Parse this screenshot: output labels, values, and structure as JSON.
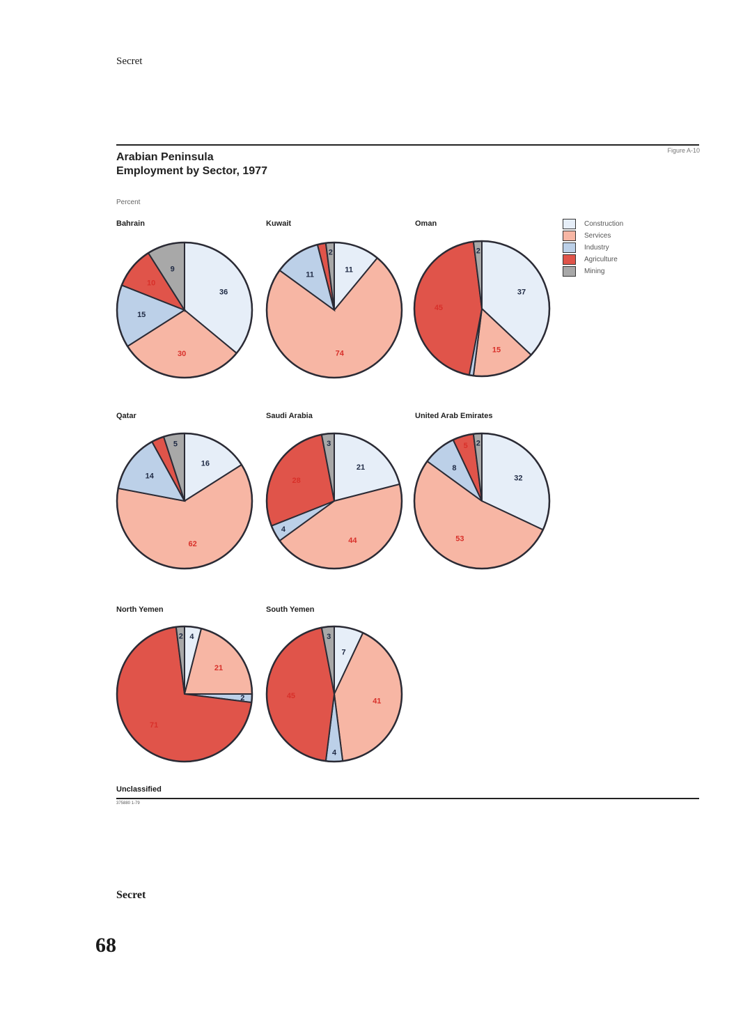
{
  "header": {
    "classification": "Secret"
  },
  "figure": {
    "title_line1": "Arabian Peninsula",
    "title_line2": "Employment by Sector, 1977",
    "label": "Figure A-10",
    "unit": "Percent"
  },
  "legend": {
    "placement": "top-right",
    "items": [
      {
        "key": "construction",
        "label": "Construction"
      },
      {
        "key": "services",
        "label": "Services"
      },
      {
        "key": "industry",
        "label": "Industry"
      },
      {
        "key": "agriculture",
        "label": "Agriculture"
      },
      {
        "key": "mining",
        "label": "Mining"
      }
    ]
  },
  "colors": {
    "construction": "#e6eef8",
    "services": "#f7b6a4",
    "industry": "#bcd0e8",
    "agriculture": "#e0544a",
    "mining": "#a8a8a8",
    "label_dark": "#1f2a44",
    "label_red": "#d8302a"
  },
  "chart_data": [
    {
      "type": "pie",
      "title": "Bahrain",
      "slices": [
        {
          "category": "construction",
          "value": 36,
          "label": "36"
        },
        {
          "category": "services",
          "value": 30,
          "label": "30"
        },
        {
          "category": "industry",
          "value": 15,
          "label": "15"
        },
        {
          "category": "agriculture",
          "value": 10,
          "label": "10"
        },
        {
          "category": "mining",
          "value": 9,
          "label": "9"
        }
      ]
    },
    {
      "type": "pie",
      "title": "Kuwait",
      "slices": [
        {
          "category": "construction",
          "value": 11,
          "label": "11"
        },
        {
          "category": "services",
          "value": 74,
          "label": "74"
        },
        {
          "category": "industry",
          "value": 11,
          "label": "11"
        },
        {
          "category": "agriculture",
          "value": 2,
          "label": ""
        },
        {
          "category": "mining",
          "value": 2,
          "label": "2"
        }
      ]
    },
    {
      "type": "pie",
      "title": "Oman",
      "slices": [
        {
          "category": "construction",
          "value": 37,
          "label": "37"
        },
        {
          "category": "services",
          "value": 15,
          "label": "15"
        },
        {
          "category": "industry",
          "value": 1,
          "label": ""
        },
        {
          "category": "agriculture",
          "value": 45,
          "label": "45"
        },
        {
          "category": "mining",
          "value": 2,
          "label": "2"
        }
      ]
    },
    {
      "type": "pie",
      "title": "Qatar",
      "slices": [
        {
          "category": "construction",
          "value": 16,
          "label": "16"
        },
        {
          "category": "services",
          "value": 62,
          "label": "62"
        },
        {
          "category": "industry",
          "value": 14,
          "label": "14"
        },
        {
          "category": "agriculture",
          "value": 3,
          "label": ""
        },
        {
          "category": "mining",
          "value": 5,
          "label": "5"
        }
      ]
    },
    {
      "type": "pie",
      "title": "Saudi Arabia",
      "slices": [
        {
          "category": "construction",
          "value": 21,
          "label": "21"
        },
        {
          "category": "services",
          "value": 44,
          "label": "44"
        },
        {
          "category": "industry",
          "value": 4,
          "label": "4"
        },
        {
          "category": "agriculture",
          "value": 28,
          "label": "28"
        },
        {
          "category": "mining",
          "value": 3,
          "label": "3"
        }
      ]
    },
    {
      "type": "pie",
      "title": "United Arab Emirates",
      "slices": [
        {
          "category": "construction",
          "value": 32,
          "label": "32"
        },
        {
          "category": "services",
          "value": 53,
          "label": "53"
        },
        {
          "category": "industry",
          "value": 8,
          "label": "8"
        },
        {
          "category": "agriculture",
          "value": 5,
          "label": "5"
        },
        {
          "category": "mining",
          "value": 2,
          "label": "2"
        }
      ]
    },
    {
      "type": "pie",
      "title": "North Yemen",
      "slices": [
        {
          "category": "construction",
          "value": 4,
          "label": "4"
        },
        {
          "category": "services",
          "value": 21,
          "label": "21"
        },
        {
          "category": "industry",
          "value": 2,
          "label": "2"
        },
        {
          "category": "agriculture",
          "value": 71,
          "label": "71"
        },
        {
          "category": "mining",
          "value": 2,
          "label": "2"
        }
      ]
    },
    {
      "type": "pie",
      "title": "South Yemen",
      "slices": [
        {
          "category": "construction",
          "value": 7,
          "label": "7"
        },
        {
          "category": "services",
          "value": 41,
          "label": "41"
        },
        {
          "category": "industry",
          "value": 4,
          "label": "4"
        },
        {
          "category": "agriculture",
          "value": 45,
          "label": "45"
        },
        {
          "category": "mining",
          "value": 3,
          "label": "3"
        }
      ]
    }
  ],
  "footer": {
    "classification": "Unclassified",
    "code": "375880 1-79",
    "bottom_classification": "Secret",
    "page_number": "68"
  }
}
